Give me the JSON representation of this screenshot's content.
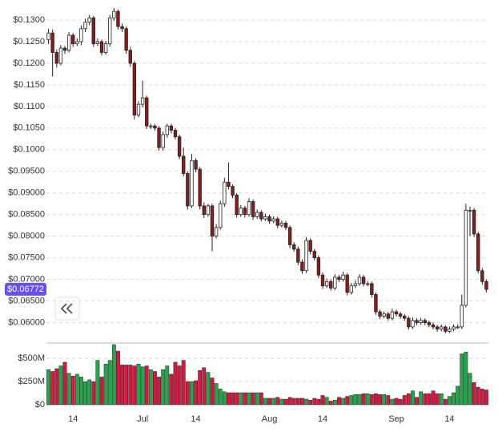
{
  "chart_data": {
    "type": "candlestick",
    "categories": [
      null,
      null,
      null,
      null,
      null,
      null,
      "14",
      null,
      null,
      null,
      null,
      null,
      null,
      null,
      null,
      null,
      null,
      null,
      null,
      null,
      null,
      null,
      null,
      "Jul",
      null,
      null,
      null,
      null,
      null,
      null,
      null,
      null,
      null,
      null,
      null,
      null,
      "14",
      null,
      null,
      null,
      null,
      null,
      null,
      null,
      null,
      null,
      null,
      null,
      null,
      null,
      null,
      null,
      null,
      null,
      "Aug",
      null,
      null,
      null,
      null,
      null,
      null,
      null,
      null,
      null,
      null,
      null,
      null,
      "14",
      null,
      null,
      null,
      null,
      null,
      null,
      null,
      null,
      null,
      null,
      null,
      null,
      null,
      null,
      null,
      null,
      null,
      "Sep",
      null,
      null,
      null,
      null,
      null,
      null,
      null,
      null,
      null,
      null,
      null,
      null,
      "14",
      null,
      null,
      null,
      null,
      null,
      null,
      null,
      null,
      null
    ],
    "open": [
      0.1255,
      0.127,
      0.1225,
      0.12,
      0.1235,
      0.123,
      0.1265,
      0.1245,
      0.125,
      0.128,
      0.1295,
      0.1305,
      0.1245,
      0.125,
      0.1225,
      0.1245,
      0.1305,
      0.132,
      0.1285,
      0.128,
      0.123,
      0.12,
      0.108,
      0.1105,
      0.112,
      0.1055,
      0.1055,
      0.105,
      0.1005,
      0.1035,
      0.1055,
      0.1045,
      0.103,
      0.0985,
      0.0945,
      0.087,
      0.0975,
      0.0955,
      0.087,
      0.085,
      0.087,
      0.08,
      0.082,
      0.0875,
      0.0925,
      0.0915,
      0.0895,
      0.085,
      0.0865,
      0.085,
      0.088,
      0.0845,
      0.0855,
      0.084,
      0.0845,
      0.0835,
      0.084,
      0.0825,
      0.083,
      0.082,
      0.078,
      0.077,
      0.074,
      0.072,
      0.079,
      0.0765,
      0.075,
      0.071,
      0.0685,
      0.0695,
      0.068,
      0.0705,
      0.07,
      0.071,
      0.067,
      0.0685,
      0.069,
      0.0705,
      0.069,
      0.069,
      0.0665,
      0.0625,
      0.0615,
      0.062,
      0.061,
      0.0625,
      0.062,
      0.0615,
      0.061,
      0.059,
      0.0605,
      0.06,
      0.0605,
      0.06,
      0.0595,
      0.059,
      0.0585,
      0.059,
      0.058,
      0.0585,
      0.059,
      0.059,
      0.064,
      0.086,
      0.086,
      0.0805,
      0.072,
      0.0695
    ],
    "high": [
      0.128,
      0.1278,
      0.1232,
      0.1242,
      0.124,
      0.1272,
      0.127,
      0.1258,
      0.1288,
      0.1303,
      0.1312,
      0.131,
      0.1258,
      0.1255,
      0.1252,
      0.1312,
      0.1328,
      0.1325,
      0.1292,
      0.1285,
      0.1238,
      0.1205,
      0.1112,
      0.116,
      0.1125,
      0.106,
      0.106,
      0.1055,
      0.1042,
      0.106,
      0.106,
      0.105,
      0.1035,
      0.1005,
      0.095,
      0.099,
      0.098,
      0.096,
      0.0878,
      0.0875,
      0.0875,
      0.0828,
      0.0882,
      0.0935,
      0.097,
      0.092,
      0.09,
      0.0872,
      0.087,
      0.0888,
      0.0885,
      0.0862,
      0.086,
      0.0852,
      0.085,
      0.0846,
      0.0845,
      0.0836,
      0.0835,
      0.0825,
      0.0786,
      0.0776,
      0.0746,
      0.0798,
      0.0795,
      0.077,
      0.0755,
      0.0716,
      0.0702,
      0.07,
      0.0712,
      0.071,
      0.0718,
      0.0715,
      0.0692,
      0.0698,
      0.0712,
      0.071,
      0.0696,
      0.0695,
      0.067,
      0.063,
      0.0626,
      0.0625,
      0.0632,
      0.063,
      0.0625,
      0.062,
      0.0615,
      0.0612,
      0.061,
      0.0611,
      0.061,
      0.0605,
      0.06,
      0.0595,
      0.0596,
      0.0594,
      0.0591,
      0.0596,
      0.0596,
      0.0665,
      0.0875,
      0.0868,
      0.0865,
      0.081,
      0.0726,
      0.07
    ],
    "low": [
      0.1245,
      0.117,
      0.119,
      0.1195,
      0.1222,
      0.1225,
      0.1238,
      0.124,
      0.1242,
      0.1272,
      0.1288,
      0.1238,
      0.124,
      0.1218,
      0.122,
      0.1238,
      0.1298,
      0.1278,
      0.1272,
      0.1222,
      0.1192,
      0.107,
      0.1075,
      0.1098,
      0.1048,
      0.1048,
      0.1044,
      0.0998,
      0.0998,
      0.1028,
      0.1038,
      0.1024,
      0.0978,
      0.0938,
      0.0862,
      0.0865,
      0.0948,
      0.0862,
      0.0842,
      0.0845,
      0.0765,
      0.0795,
      0.0815,
      0.0868,
      0.0908,
      0.0888,
      0.0843,
      0.0845,
      0.0843,
      0.0845,
      0.0838,
      0.084,
      0.0834,
      0.0835,
      0.0829,
      0.083,
      0.0818,
      0.082,
      0.0814,
      0.0772,
      0.0764,
      0.0733,
      0.0713,
      0.0715,
      0.0758,
      0.0744,
      0.0703,
      0.0678,
      0.068,
      0.0674,
      0.0675,
      0.0694,
      0.0695,
      0.0663,
      0.0665,
      0.068,
      0.0685,
      0.0684,
      0.0684,
      0.0658,
      0.0618,
      0.0608,
      0.061,
      0.0604,
      0.0605,
      0.0614,
      0.0609,
      0.0604,
      0.0584,
      0.0585,
      0.0594,
      0.0595,
      0.0594,
      0.0589,
      0.0584,
      0.0579,
      0.058,
      0.0575,
      0.0576,
      0.058,
      0.0585,
      0.0585,
      0.0635,
      0.08,
      0.0798,
      0.0714,
      0.0688,
      0.067
    ],
    "close": [
      0.127,
      0.1225,
      0.12,
      0.1235,
      0.123,
      0.1265,
      0.1245,
      0.125,
      0.128,
      0.1295,
      0.1305,
      0.1245,
      0.125,
      0.1225,
      0.1245,
      0.1305,
      0.132,
      0.1285,
      0.128,
      0.123,
      0.12,
      0.108,
      0.1105,
      0.112,
      0.1055,
      0.1055,
      0.105,
      0.1005,
      0.1035,
      0.1055,
      0.1045,
      0.103,
      0.0985,
      0.0945,
      0.087,
      0.0975,
      0.0955,
      0.087,
      0.085,
      0.087,
      0.08,
      0.082,
      0.0875,
      0.0925,
      0.0915,
      0.0895,
      0.085,
      0.0865,
      0.085,
      0.088,
      0.0845,
      0.0855,
      0.084,
      0.0845,
      0.0835,
      0.084,
      0.0825,
      0.083,
      0.082,
      0.078,
      0.077,
      0.074,
      0.072,
      0.079,
      0.0765,
      0.075,
      0.071,
      0.0685,
      0.0695,
      0.068,
      0.0705,
      0.07,
      0.071,
      0.067,
      0.0685,
      0.069,
      0.0705,
      0.069,
      0.069,
      0.0665,
      0.0625,
      0.0615,
      0.062,
      0.061,
      0.0625,
      0.062,
      0.0615,
      0.061,
      0.059,
      0.0605,
      0.06,
      0.0605,
      0.06,
      0.0595,
      0.059,
      0.0585,
      0.059,
      0.058,
      0.0585,
      0.059,
      0.059,
      0.064,
      0.086,
      0.086,
      0.0805,
      0.072,
      0.0695,
      0.0677
    ],
    "volume": [
      380000000,
      360000000,
      390000000,
      420000000,
      460000000,
      340000000,
      310000000,
      330000000,
      300000000,
      250000000,
      270000000,
      250000000,
      480000000,
      300000000,
      440000000,
      480000000,
      650000000,
      580000000,
      430000000,
      430000000,
      430000000,
      420000000,
      440000000,
      410000000,
      420000000,
      380000000,
      360000000,
      300000000,
      380000000,
      420000000,
      330000000,
      460000000,
      420000000,
      480000000,
      250000000,
      250000000,
      260000000,
      370000000,
      400000000,
      350000000,
      290000000,
      230000000,
      170000000,
      140000000,
      130000000,
      130000000,
      130000000,
      130000000,
      130000000,
      130000000,
      130000000,
      130000000,
      130000000,
      70000000,
      70000000,
      70000000,
      80000000,
      60000000,
      60000000,
      80000000,
      70000000,
      70000000,
      70000000,
      60000000,
      50000000,
      70000000,
      60000000,
      100000000,
      80000000,
      40000000,
      50000000,
      80000000,
      70000000,
      90000000,
      100000000,
      110000000,
      110000000,
      120000000,
      120000000,
      110000000,
      120000000,
      110000000,
      110000000,
      100000000,
      60000000,
      70000000,
      60000000,
      100000000,
      120000000,
      150000000,
      80000000,
      140000000,
      120000000,
      120000000,
      150000000,
      120000000,
      120000000,
      60000000,
      90000000,
      130000000,
      200000000,
      550000000,
      570000000,
      340000000,
      240000000,
      190000000,
      170000000,
      160000000
    ],
    "ylim": [
      0.0575,
      0.1326
    ],
    "yticks": [
      {
        "value": 0.13,
        "label": "$0.1300"
      },
      {
        "value": 0.125,
        "label": "$0.1250"
      },
      {
        "value": 0.12,
        "label": "$0.1200"
      },
      {
        "value": 0.115,
        "label": "$0.1150"
      },
      {
        "value": 0.11,
        "label": "$0.1100"
      },
      {
        "value": 0.105,
        "label": "$0.1050"
      },
      {
        "value": 0.1,
        "label": "$0.1000"
      },
      {
        "value": 0.095,
        "label": "$0.09500"
      },
      {
        "value": 0.09,
        "label": "$0.09000"
      },
      {
        "value": 0.085,
        "label": "$0.08500"
      },
      {
        "value": 0.08,
        "label": "$0.08000"
      },
      {
        "value": 0.075,
        "label": "$0.07500"
      },
      {
        "value": 0.07,
        "label": "$0.07000"
      },
      {
        "value": 0.065,
        "label": "$0.06500"
      },
      {
        "value": 0.06,
        "label": "$0.06000"
      }
    ],
    "y2lim": [
      0,
      650000000
    ],
    "y2ticks": [
      {
        "value": 500000000,
        "label": "$500M"
      },
      {
        "value": 250000000,
        "label": "$250M"
      },
      {
        "value": 0,
        "label": "$0"
      }
    ],
    "last_price": {
      "value": 0.06772,
      "label": "$0.06772",
      "color": "#6a4ff0"
    },
    "up_color": "#22a84a",
    "down_color": "#d8163f",
    "candle_up_color": "#ffffff",
    "candle_down_color": "#8a1c1c",
    "grid": true
  }
}
